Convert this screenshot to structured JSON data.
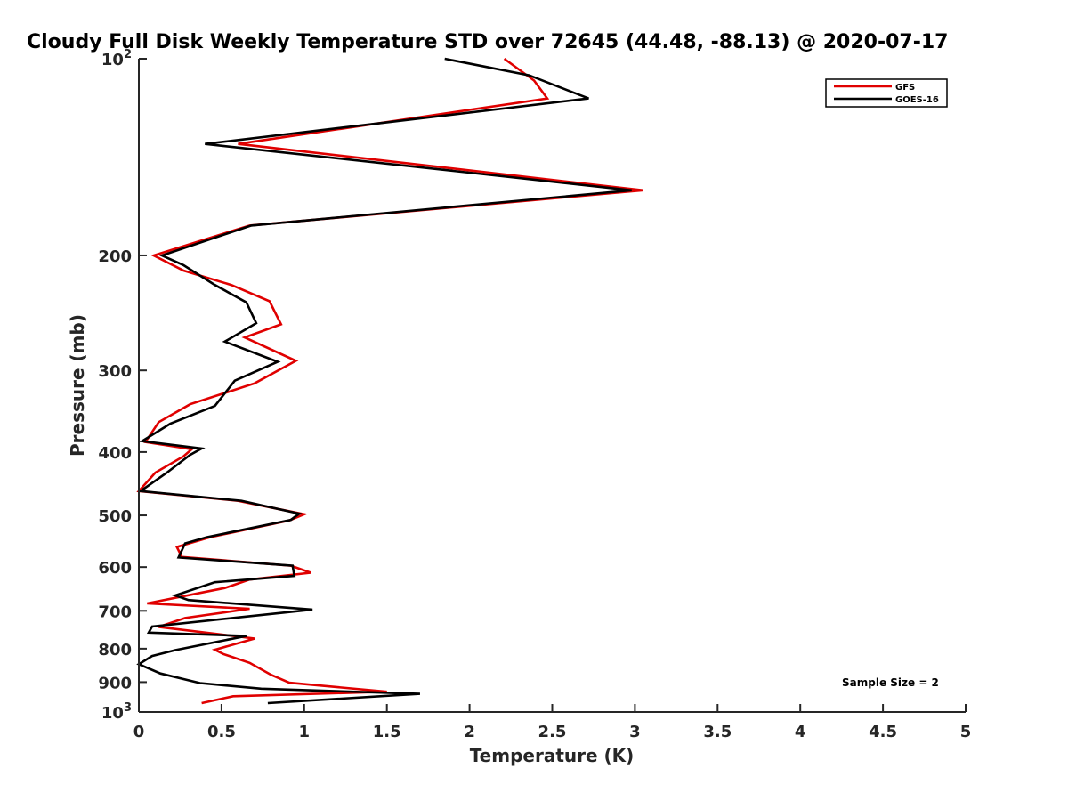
{
  "chart_data": {
    "type": "line",
    "title": "Cloudy Full Disk Weekly Temperature STD over 72645 (44.48, -88.13) @ 2020-07-17",
    "xlabel": "Temperature (K)",
    "ylabel": "Pressure (mb)",
    "xlim": [
      0,
      5
    ],
    "ylim": [
      100,
      1000
    ],
    "y_scale": "log",
    "y_reversed": true,
    "x_ticks": [
      {
        "value": 0,
        "label": "0"
      },
      {
        "value": 0.5,
        "label": "0.5"
      },
      {
        "value": 1,
        "label": "1"
      },
      {
        "value": 1.5,
        "label": "1.5"
      },
      {
        "value": 2,
        "label": "2"
      },
      {
        "value": 2.5,
        "label": "2.5"
      },
      {
        "value": 3,
        "label": "3"
      },
      {
        "value": 3.5,
        "label": "3.5"
      },
      {
        "value": 4,
        "label": "4"
      },
      {
        "value": 4.5,
        "label": "4.5"
      },
      {
        "value": 5,
        "label": "5"
      }
    ],
    "y_ticks": [
      {
        "value": 100,
        "label": "10",
        "sup": "2"
      },
      {
        "value": 200,
        "label": "200",
        "sup": ""
      },
      {
        "value": 300,
        "label": "300",
        "sup": ""
      },
      {
        "value": 400,
        "label": "400",
        "sup": ""
      },
      {
        "value": 500,
        "label": "500",
        "sup": ""
      },
      {
        "value": 600,
        "label": "600",
        "sup": ""
      },
      {
        "value": 700,
        "label": "700",
        "sup": ""
      },
      {
        "value": 800,
        "label": "800",
        "sup": ""
      },
      {
        "value": 900,
        "label": "900",
        "sup": ""
      },
      {
        "value": 1000,
        "label": "10",
        "sup": "3"
      }
    ],
    "grid": false,
    "legend_position": "top-right",
    "annotation": "Sample Size = 2",
    "series": [
      {
        "name": "GFS",
        "color": "#e00000",
        "points": [
          [
            2.21,
            100
          ],
          [
            2.39,
            108
          ],
          [
            2.47,
            115
          ],
          [
            0.6,
            135
          ],
          [
            3.05,
            159
          ],
          [
            0.67,
            180
          ],
          [
            0.09,
            200
          ],
          [
            0.27,
            211
          ],
          [
            0.56,
            222
          ],
          [
            0.79,
            235
          ],
          [
            0.86,
            255
          ],
          [
            0.64,
            267
          ],
          [
            0.95,
            290
          ],
          [
            0.7,
            314
          ],
          [
            0.31,
            338
          ],
          [
            0.12,
            360
          ],
          [
            0.04,
            386
          ],
          [
            0.32,
            396
          ],
          [
            0.27,
            406
          ],
          [
            0.1,
            430
          ],
          [
            0.0,
            459
          ],
          [
            0.6,
            475
          ],
          [
            1.0,
            498
          ],
          [
            0.91,
            509
          ],
          [
            0.43,
            540
          ],
          [
            0.23,
            559
          ],
          [
            0.26,
            579
          ],
          [
            0.92,
            597
          ],
          [
            1.04,
            612
          ],
          [
            0.67,
            627
          ],
          [
            0.52,
            646
          ],
          [
            0.05,
            682
          ],
          [
            0.67,
            695
          ],
          [
            0.28,
            718
          ],
          [
            0.12,
            741
          ],
          [
            0.7,
            772
          ],
          [
            0.46,
            803
          ],
          [
            0.51,
            815
          ],
          [
            0.67,
            841
          ],
          [
            0.8,
            877
          ],
          [
            0.91,
            902
          ],
          [
            1.5,
            931
          ],
          [
            0.57,
            946
          ],
          [
            0.38,
            969
          ]
        ]
      },
      {
        "name": "GOES-16",
        "color": "#000000",
        "points": [
          [
            1.85,
            100
          ],
          [
            2.36,
            106
          ],
          [
            2.72,
            115
          ],
          [
            0.4,
            135
          ],
          [
            2.98,
            159
          ],
          [
            0.68,
            180
          ],
          [
            0.14,
            200
          ],
          [
            0.27,
            207
          ],
          [
            0.46,
            222
          ],
          [
            0.65,
            236
          ],
          [
            0.71,
            254
          ],
          [
            0.52,
            271
          ],
          [
            0.84,
            291
          ],
          [
            0.58,
            311
          ],
          [
            0.46,
            340
          ],
          [
            0.19,
            362
          ],
          [
            0.02,
            385
          ],
          [
            0.38,
            395
          ],
          [
            0.31,
            404
          ],
          [
            0.17,
            430
          ],
          [
            0.01,
            459
          ],
          [
            0.62,
            475
          ],
          [
            0.97,
            497
          ],
          [
            0.92,
            508
          ],
          [
            0.41,
            540
          ],
          [
            0.28,
            552
          ],
          [
            0.24,
            580
          ],
          [
            0.93,
            597
          ],
          [
            0.94,
            619
          ],
          [
            0.46,
            633
          ],
          [
            0.22,
            663
          ],
          [
            0.3,
            674
          ],
          [
            1.05,
            697
          ],
          [
            0.08,
            740
          ],
          [
            0.06,
            756
          ],
          [
            0.65,
            765
          ],
          [
            0.22,
            804
          ],
          [
            0.08,
            821
          ],
          [
            0.0,
            845
          ],
          [
            0.13,
            873
          ],
          [
            0.37,
            903
          ],
          [
            0.74,
            921
          ],
          [
            1.7,
            938
          ],
          [
            0.78,
            969
          ]
        ]
      }
    ]
  }
}
